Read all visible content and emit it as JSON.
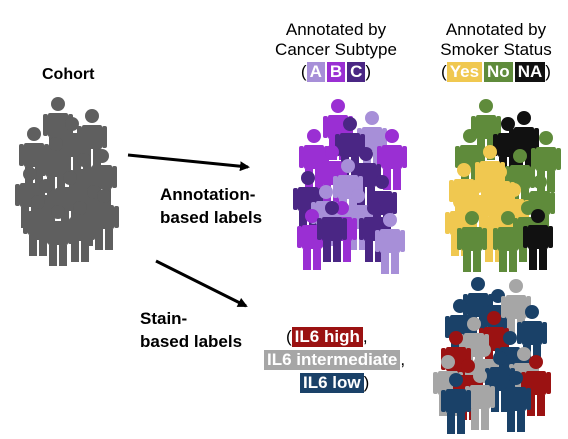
{
  "cohort": {
    "label": "Cohort"
  },
  "annotation_arrow": {
    "line1": "Annotation-",
    "line2": "based labels"
  },
  "stain_arrow": {
    "line1": "Stain-",
    "line2": "based labels"
  },
  "subtype": {
    "line1": "Annotated by",
    "line2": "Cancer Subtype",
    "open": "(",
    "close": ")",
    "labels": [
      "A",
      "B",
      "C"
    ],
    "colors": [
      "#a78fd8",
      "#9a2fd3",
      "#4a2684"
    ]
  },
  "smoker": {
    "line1": "Annotated by",
    "line2": "Smoker Status",
    "open": "(",
    "close": ")",
    "labels": [
      "Yes",
      "No",
      "NA"
    ],
    "colors": [
      "#f0c850",
      "#5f8b3b",
      "#111111"
    ]
  },
  "il6": {
    "open": "(",
    "sep1": ",",
    "sep2": ",",
    "close": ")",
    "high": "IL6 high",
    "intermediate": "IL6 intermediate",
    "low": "IL6 low",
    "colors": {
      "high": "#9b1212",
      "intermediate": "#a6a6a6",
      "low": "#1a4168"
    }
  },
  "colors": {
    "cohort": "#5f5f5f",
    "arrow": "#000000"
  }
}
